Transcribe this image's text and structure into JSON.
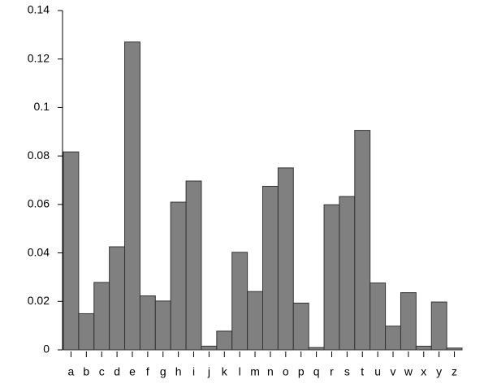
{
  "chart_data": {
    "type": "bar",
    "categories": [
      "a",
      "b",
      "c",
      "d",
      "e",
      "f",
      "g",
      "h",
      "i",
      "j",
      "k",
      "l",
      "m",
      "n",
      "o",
      "p",
      "q",
      "r",
      "s",
      "t",
      "u",
      "v",
      "w",
      "x",
      "y",
      "z"
    ],
    "values": [
      0.08167,
      0.01492,
      0.02782,
      0.04253,
      0.12702,
      0.02228,
      0.02015,
      0.06094,
      0.06966,
      0.00153,
      0.00772,
      0.04025,
      0.02406,
      0.06749,
      0.07507,
      0.01929,
      0.00095,
      0.05987,
      0.06327,
      0.09056,
      0.02758,
      0.00978,
      0.0236,
      0.0015,
      0.01974,
      0.00074
    ],
    "color": "#808080",
    "ylim": [
      0,
      0.14
    ],
    "yticks": [
      0,
      0.02,
      0.04,
      0.06,
      0.08,
      0.1,
      0.12,
      0.14
    ],
    "grid": false
  }
}
